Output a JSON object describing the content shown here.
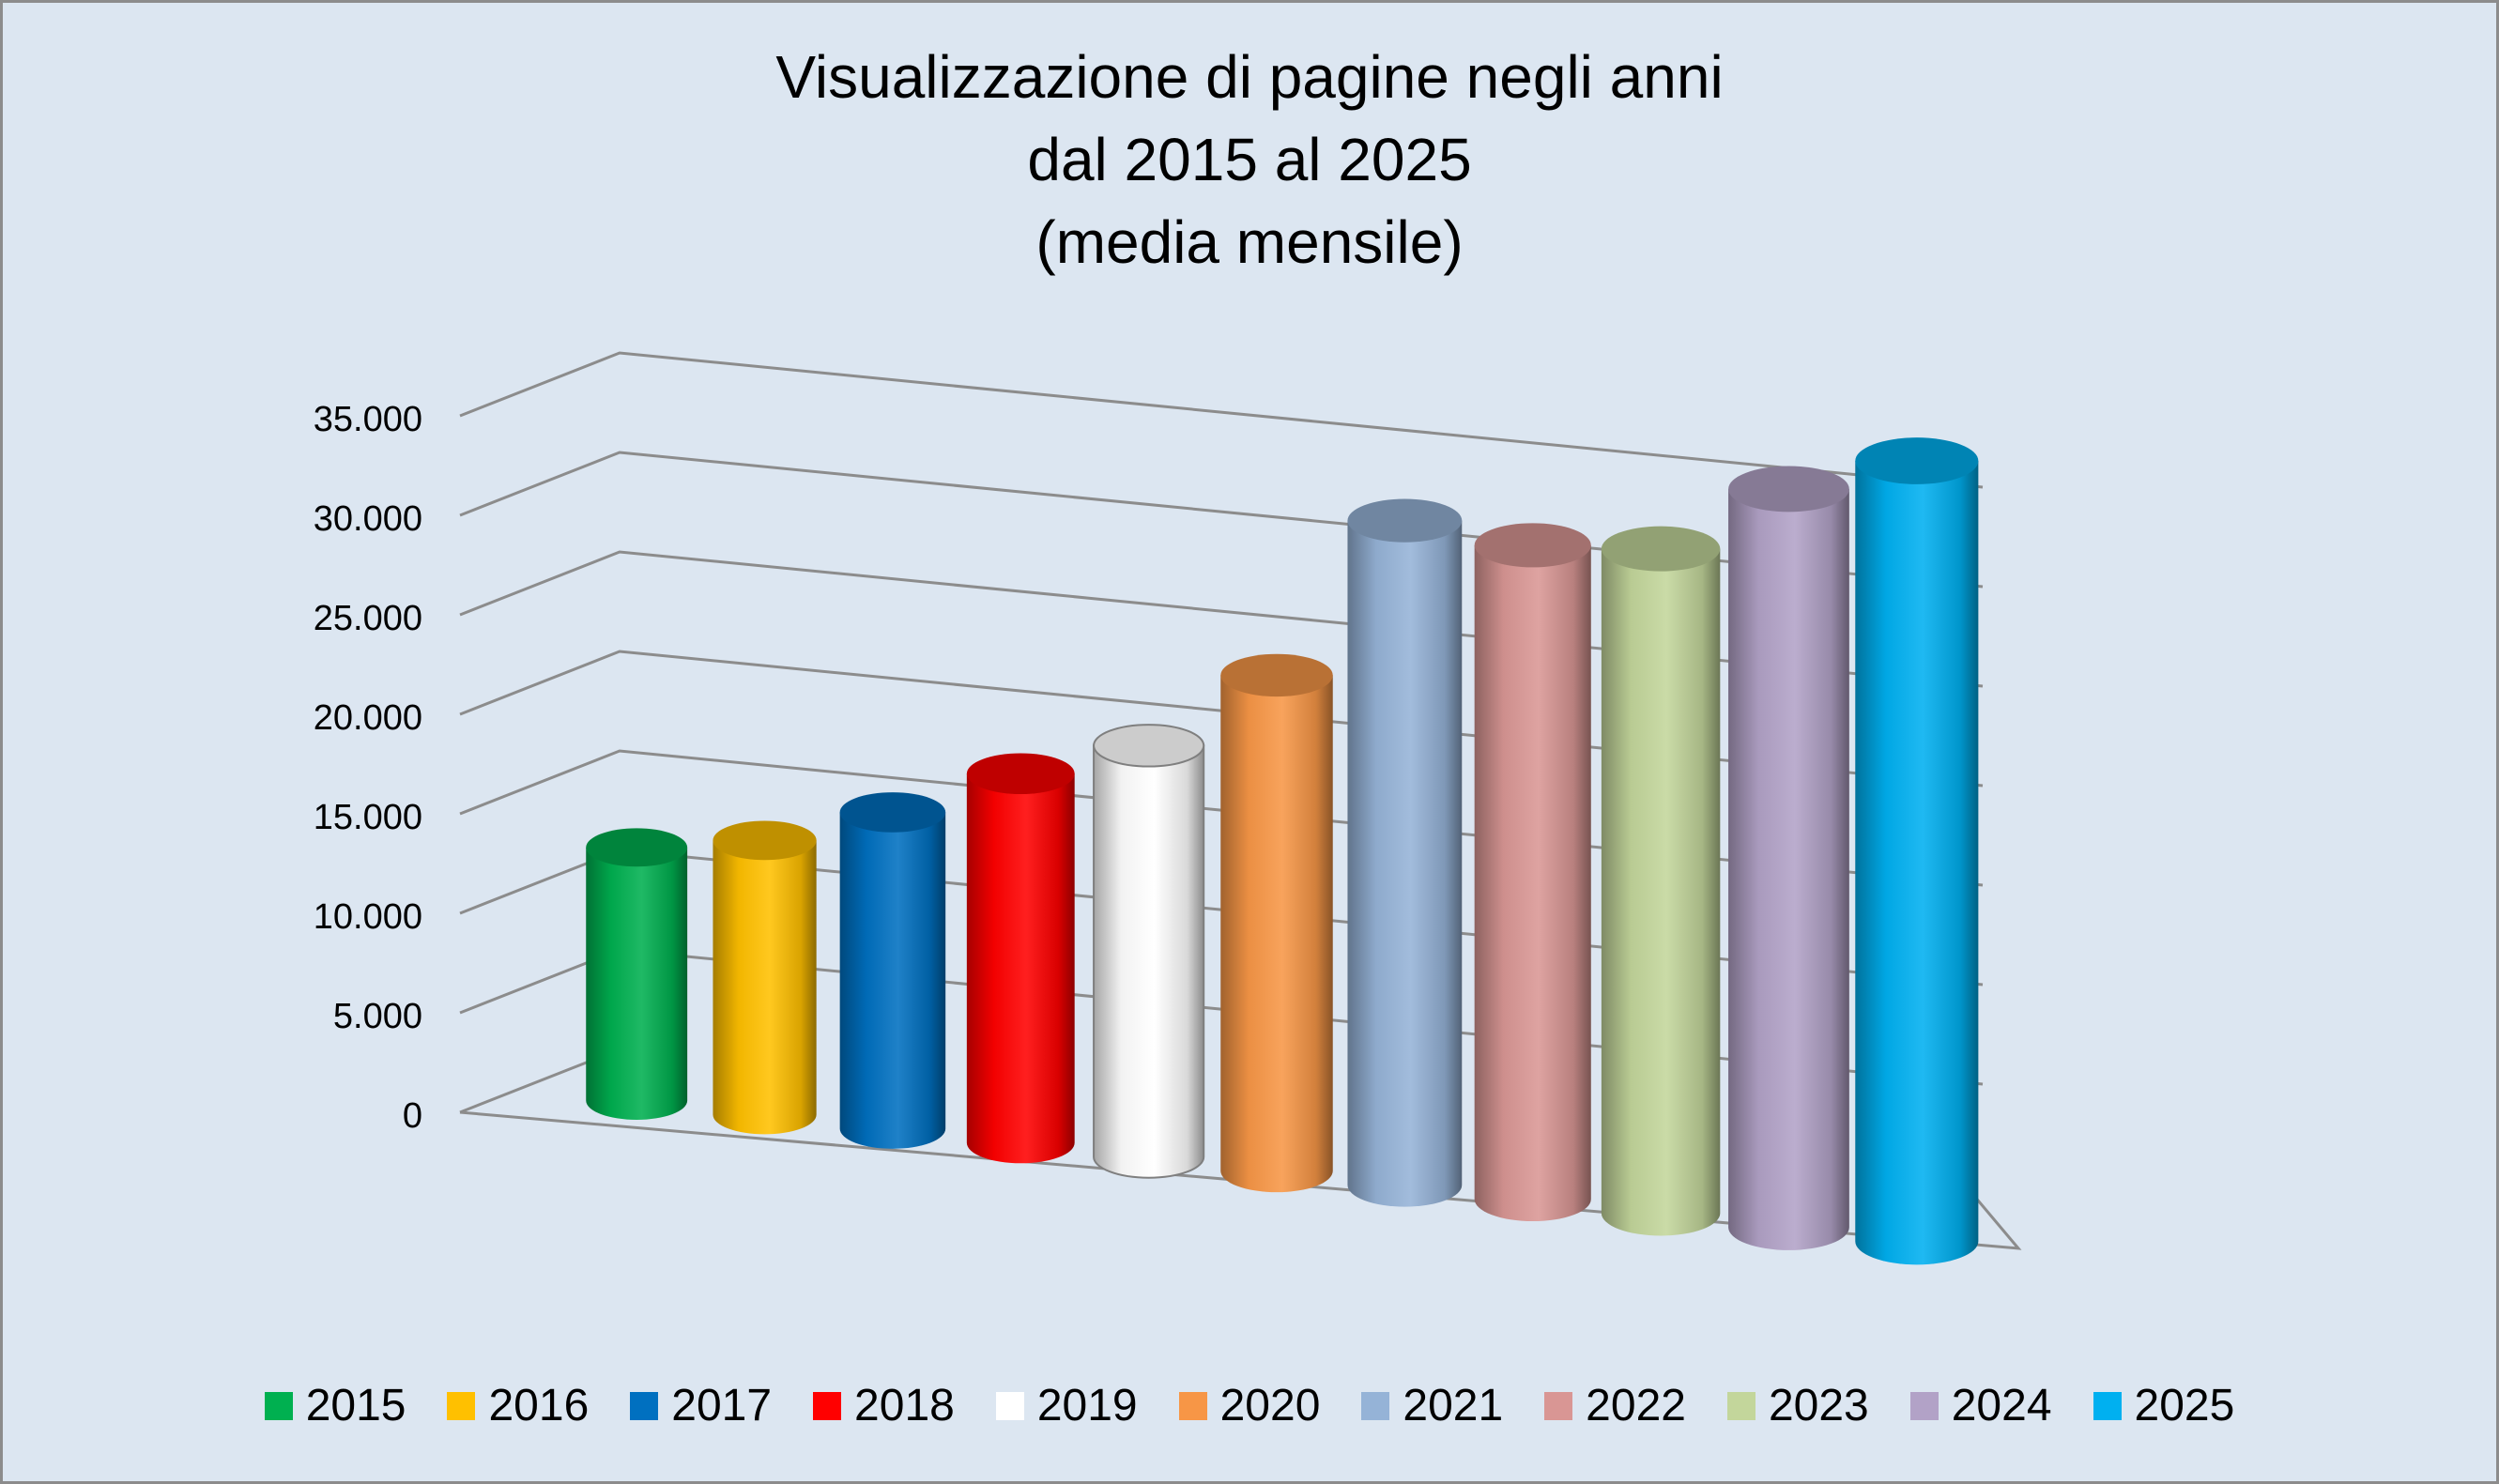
{
  "chart_data": {
    "type": "bar",
    "style": "3d-cylinder",
    "title": [
      "Visualizzazione di pagine negli anni",
      "dal 2015 al 2025",
      "(media mensile)"
    ],
    "xlabel": "",
    "ylabel": "",
    "ylim": [
      0,
      35000
    ],
    "yticks": [
      0,
      5000,
      10000,
      15000,
      20000,
      25000,
      30000,
      35000
    ],
    "ytick_labels": [
      "0",
      "5.000",
      "10.000",
      "15.000",
      "20.000",
      "25.000",
      "30.000",
      "35.000"
    ],
    "grid": true,
    "legend_position": "bottom",
    "categories": [
      "2015",
      "2016",
      "2017",
      "2018",
      "2019",
      "2020",
      "2021",
      "2022",
      "2023",
      "2024",
      "2025"
    ],
    "values": [
      12000,
      13000,
      15000,
      17500,
      19500,
      23500,
      31500,
      31000,
      31500,
      35000,
      37000
    ],
    "colors": [
      "#00b050",
      "#ffc000",
      "#0070c0",
      "#ff0000",
      "#ffffff",
      "#f79646",
      "#95b3d7",
      "#d99694",
      "#c3d69b",
      "#b2a2c7",
      "#00b0f0"
    ]
  }
}
